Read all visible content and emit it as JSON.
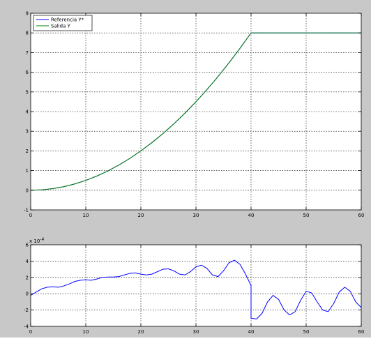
{
  "colors": {
    "figure_bg": "#c8c8c8",
    "axes_bg": "#ffffff",
    "reference": "#0000ff",
    "output": "#008000",
    "error": "#0000ff"
  },
  "chart_data": [
    {
      "type": "line",
      "title": "",
      "xlabel": "",
      "ylabel": "",
      "xlim": [
        0,
        60
      ],
      "ylim": [
        -1,
        9
      ],
      "xticks": [
        "0",
        "10",
        "20",
        "30",
        "40",
        "50",
        "60"
      ],
      "yticks": [
        "-1",
        "0",
        "1",
        "2",
        "3",
        "4",
        "5",
        "6",
        "7",
        "8",
        "9"
      ],
      "grid": true,
      "legend": {
        "position": "top-left",
        "entries": [
          "Referencia Y*",
          "Salida Y"
        ]
      },
      "series": [
        {
          "name": "Referencia Y*",
          "color": "#0000ff",
          "x": [
            0,
            2,
            4,
            6,
            8,
            10,
            12,
            14,
            16,
            18,
            20,
            22,
            24,
            26,
            28,
            30,
            32,
            34,
            36,
            38,
            40,
            40,
            45,
            50,
            55,
            60
          ],
          "y": [
            0,
            0.02,
            0.08,
            0.18,
            0.32,
            0.5,
            0.72,
            0.98,
            1.28,
            1.62,
            2.0,
            2.42,
            2.88,
            3.38,
            3.92,
            4.5,
            5.12,
            5.78,
            6.48,
            7.22,
            8.0,
            8.0,
            8.0,
            8.0,
            8.0,
            8.0
          ]
        },
        {
          "name": "Salida Y",
          "color": "#008000",
          "x": [
            0,
            2,
            4,
            6,
            8,
            10,
            12,
            14,
            16,
            18,
            20,
            22,
            24,
            26,
            28,
            30,
            32,
            34,
            36,
            38,
            40,
            40,
            45,
            50,
            55,
            60
          ],
          "y": [
            0,
            0.02,
            0.08,
            0.18,
            0.32,
            0.5,
            0.72,
            0.98,
            1.28,
            1.62,
            2.0,
            2.42,
            2.88,
            3.38,
            3.92,
            4.5,
            5.12,
            5.78,
            6.48,
            7.22,
            8.0,
            8.0,
            8.0,
            8.0,
            8.0,
            8.0
          ]
        }
      ]
    },
    {
      "type": "line",
      "title": "",
      "xlabel": "",
      "ylabel": "",
      "y_multiplier": "x 10",
      "y_multiplier_exponent": "-4",
      "xlim": [
        0,
        60
      ],
      "ylim": [
        -4,
        6
      ],
      "xticks": [
        "0",
        "10",
        "20",
        "30",
        "40",
        "50",
        "60"
      ],
      "yticks": [
        "-4",
        "-2",
        "0",
        "2",
        "4",
        "6"
      ],
      "grid": true,
      "series": [
        {
          "color": "#0000ff",
          "x": [
            0,
            1,
            2,
            3,
            4,
            5,
            6,
            7,
            8,
            9,
            10,
            11,
            12,
            13,
            14,
            15,
            16,
            17,
            18,
            19,
            20,
            21,
            22,
            23,
            24,
            25,
            26,
            27,
            28,
            29,
            30,
            31,
            32,
            33,
            34,
            35,
            36,
            37,
            38,
            39,
            40,
            40,
            41,
            42,
            43,
            44,
            45,
            46,
            47,
            48,
            49,
            50,
            51,
            52,
            53,
            54,
            55,
            56,
            57,
            58,
            59,
            60
          ],
          "y": [
            -0.2,
            0.2,
            0.6,
            0.8,
            0.85,
            0.8,
            0.95,
            1.2,
            1.5,
            1.65,
            1.7,
            1.65,
            1.8,
            2.0,
            2.05,
            2.05,
            2.1,
            2.3,
            2.5,
            2.55,
            2.4,
            2.3,
            2.4,
            2.7,
            3.0,
            3.05,
            2.8,
            2.4,
            2.3,
            2.7,
            3.3,
            3.5,
            3.1,
            2.3,
            2.1,
            2.8,
            3.8,
            4.1,
            3.6,
            2.4,
            1.0,
            -3.0,
            -3.1,
            -2.4,
            -1.0,
            -0.2,
            -0.7,
            -2.0,
            -2.6,
            -2.2,
            -0.8,
            0.3,
            0.1,
            -1.0,
            -2.0,
            -2.2,
            -1.2,
            0.2,
            0.8,
            0.3,
            -1.0,
            -1.7
          ]
        }
      ]
    }
  ]
}
